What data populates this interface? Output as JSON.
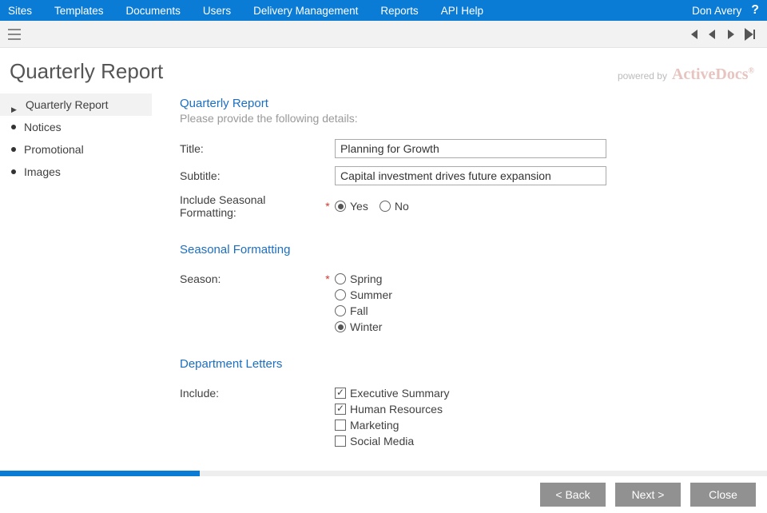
{
  "colors": {
    "topnav_bg": "#0a7cd5",
    "section_title": "#1b6ec2",
    "button_bg": "#919191",
    "required": "#d43a2f"
  },
  "topnav": {
    "items": [
      "Sites",
      "Templates",
      "Documents",
      "Users",
      "Delivery Management",
      "Reports",
      "API Help"
    ],
    "user": "Don Avery",
    "help": "?"
  },
  "page_title": "Quarterly Report",
  "powered_by": {
    "prefix": "powered by",
    "brand": "ActiveDocs"
  },
  "sidebar": {
    "items": [
      {
        "label": "Quarterly Report",
        "active": true
      },
      {
        "label": "Notices",
        "active": false
      },
      {
        "label": "Promotional",
        "active": false
      },
      {
        "label": "Images",
        "active": false
      }
    ]
  },
  "sections": {
    "qr": {
      "title": "Quarterly Report",
      "subtitle": "Please provide the following details:",
      "fields": {
        "title_label": "Title:",
        "title_value": "Planning for Growth",
        "subtitle_label": "Subtitle:",
        "subtitle_value": "Capital investment drives future expansion",
        "seasonal_label": "Include Seasonal Formatting:",
        "seasonal_options": {
          "yes": "Yes",
          "no": "No"
        },
        "seasonal_selected": "yes"
      }
    },
    "seasonal": {
      "title": "Seasonal Formatting",
      "season_label": "Season:",
      "options": [
        "Spring",
        "Summer",
        "Fall",
        "Winter"
      ],
      "selected": "Winter"
    },
    "dept": {
      "title": "Department Letters",
      "include_label": "Include:",
      "options": [
        {
          "label": "Executive Summary",
          "checked": true
        },
        {
          "label": "Human Resources",
          "checked": true
        },
        {
          "label": "Marketing",
          "checked": false
        },
        {
          "label": "Social Media",
          "checked": false
        }
      ]
    }
  },
  "progress_pct": 26,
  "footer": {
    "back": "< Back",
    "next": "Next >",
    "close": "Close"
  }
}
